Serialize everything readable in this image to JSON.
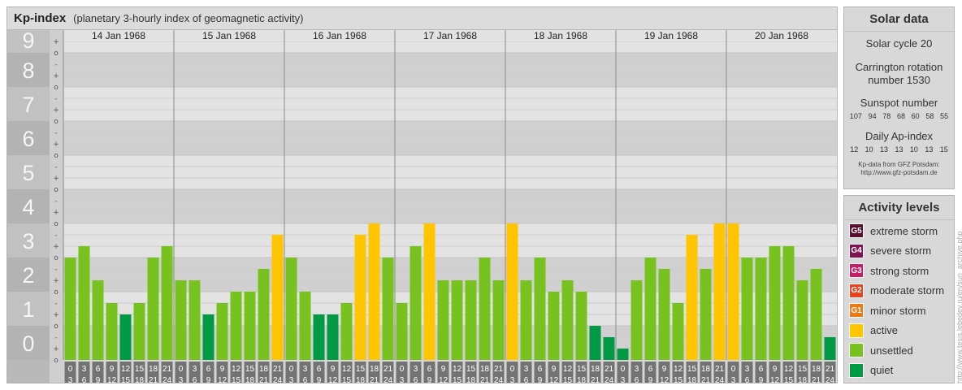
{
  "header": {
    "title": "Kp-index",
    "subtitle": "(planetary 3-hourly index of geomagnetic activity)"
  },
  "chart_data": {
    "type": "bar",
    "title": "Kp-index",
    "subtitle": "(planetary 3-hourly index of geomagnetic activity)",
    "ylim": [
      0,
      9
    ],
    "y_ticks": [
      "0",
      "1",
      "2",
      "3",
      "4",
      "5",
      "6",
      "7",
      "8",
      "9"
    ],
    "minor_tick_labels": [
      "o",
      "+",
      "-"
    ],
    "days": [
      "14 Jan 1968",
      "15 Jan 1968",
      "16 Jan 1968",
      "17 Jan 1968",
      "18 Jan 1968",
      "19 Jan 1968",
      "20 Jan 1968"
    ],
    "interval_labels": [
      [
        "0",
        "3"
      ],
      [
        "3",
        "6"
      ],
      [
        "6",
        "9"
      ],
      [
        "9",
        "12"
      ],
      [
        "12",
        "15"
      ],
      [
        "15",
        "18"
      ],
      [
        "18",
        "21"
      ],
      [
        "21",
        "24"
      ]
    ],
    "values": [
      [
        3.0,
        3.333,
        2.333,
        1.667,
        1.333,
        1.667,
        3.0,
        3.333
      ],
      [
        2.333,
        2.333,
        1.333,
        1.667,
        2.0,
        2.0,
        2.667,
        3.667
      ],
      [
        3.0,
        2.0,
        1.333,
        1.333,
        1.667,
        3.667,
        4.0,
        3.0
      ],
      [
        1.667,
        3.333,
        4.0,
        2.333,
        2.333,
        2.333,
        3.0,
        2.333
      ],
      [
        4.0,
        2.333,
        3.0,
        2.0,
        2.333,
        2.0,
        1.0,
        0.667
      ],
      [
        0.333,
        2.333,
        3.0,
        2.667,
        1.667,
        3.667,
        2.667,
        4.0
      ],
      [
        4.0,
        3.0,
        3.0,
        3.333,
        3.333,
        2.333,
        2.667,
        0.667
      ]
    ],
    "color_thresholds": {
      "quiet": "Kp < 2-",
      "unsettled": "2- to 3+",
      "active": "Kp >= 4-"
    },
    "colors": {
      "quiet": "#009944",
      "unsettled": "#77c21f",
      "active": "#ffc600"
    },
    "grid": true,
    "legend": "right"
  },
  "solar": {
    "heading": "Solar data",
    "solar_cycle": "Solar cycle 20",
    "carrington_1": "Carrington rotation",
    "carrington_2": "number 1530",
    "sunspot_heading": "Sunspot number",
    "sunspots": [
      "107",
      "94",
      "78",
      "68",
      "60",
      "58",
      "55"
    ],
    "ap_heading": "Daily Ap-index",
    "ap": [
      "12",
      "10",
      "13",
      "13",
      "10",
      "13",
      "15"
    ],
    "note_1": "Kp-data from GFZ Potsdam:",
    "note_2": "http://www.gfz-potsdam.de"
  },
  "activity": {
    "heading": "Activity levels",
    "levels": [
      {
        "code": "G5",
        "label": "extreme storm",
        "color": "#5a0e2f"
      },
      {
        "code": "G4",
        "label": "severe storm",
        "color": "#7d1450"
      },
      {
        "code": "G3",
        "label": "strong storm",
        "color": "#c61d67"
      },
      {
        "code": "G2",
        "label": "moderate storm",
        "color": "#e2451f"
      },
      {
        "code": "G1",
        "label": "minor storm",
        "color": "#ea7a16"
      },
      {
        "code": "",
        "label": "active",
        "color": "#ffc600"
      },
      {
        "code": "",
        "label": "unsettled",
        "color": "#77c21f"
      },
      {
        "code": "",
        "label": "quiet",
        "color": "#009944"
      }
    ]
  },
  "credit": "http://www.tesis.lebedev.ru/en/sun_archive.php"
}
